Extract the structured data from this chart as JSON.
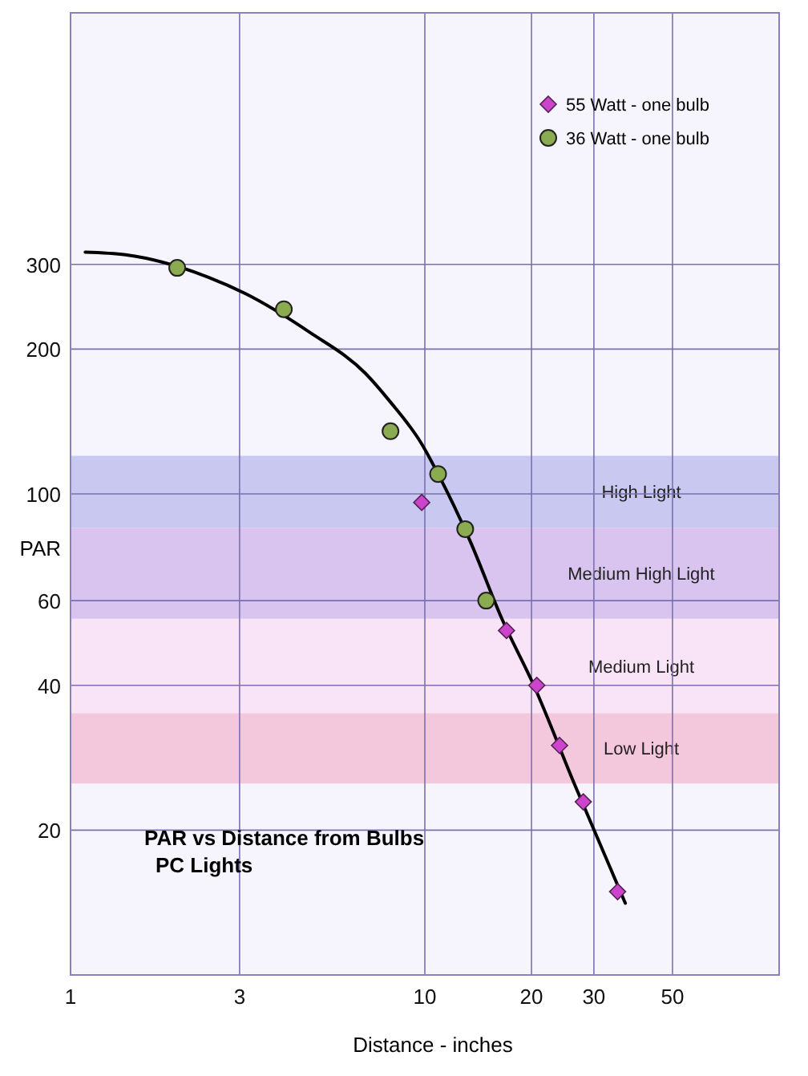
{
  "chart_data": {
    "type": "scatter",
    "title": "PAR vs Distance from Bulbs",
    "subtitle": "PC Lights",
    "xlabel": "Distance - inches",
    "ylabel": "PAR",
    "log": "xy",
    "xlim": [
      1,
      100
    ],
    "ylim": [
      10,
      1000
    ],
    "xticks": [
      1,
      3,
      10,
      20,
      30,
      50
    ],
    "yticks": [
      20,
      40,
      60,
      100,
      200,
      300
    ],
    "grid": true,
    "legend": "top right",
    "bands": [
      {
        "axis": "y",
        "from": 85,
        "to": 120,
        "label": "High Light",
        "color": "#c8c8f0"
      },
      {
        "axis": "y",
        "from": 55,
        "to": 85,
        "label": "Medium High Light",
        "color": "#d8c4ee"
      },
      {
        "axis": "y",
        "from": 35,
        "to": 55,
        "label": "Medium Light",
        "color": "#f8e4f6"
      },
      {
        "axis": "y",
        "from": 25,
        "to": 35,
        "label": "Low Light",
        "color": "#f4c8dc"
      }
    ],
    "series": [
      {
        "type": "line",
        "color": "#000000",
        "line_style": "solid",
        "marker": "none",
        "x": [
          1.1,
          1.43,
          2.45,
          3.11,
          4.72,
          6.8,
          7.95,
          9.8,
          10.9,
          13.4,
          16.5,
          20.3,
          26.4,
          36.8
        ],
        "values": [
          318,
          314,
          282,
          261,
          217,
          178,
          156,
          127,
          110,
          80,
          55,
          40,
          25,
          14.1
        ]
      },
      {
        "name": "55 Watt - one bulb",
        "color": "#cc44cc",
        "marker": "diamond",
        "x": [
          9.8,
          17,
          20.7,
          24,
          28,
          35
        ],
        "values": [
          96,
          52,
          40,
          30,
          22.9,
          14.9
        ]
      },
      {
        "name": "36 Watt - one bulb",
        "color": "#8aab4f",
        "marker": "circle",
        "x": [
          2,
          4,
          8,
          10.9,
          13,
          14.9
        ],
        "values": [
          295,
          242,
          135,
          110,
          84.5,
          60
        ]
      }
    ]
  }
}
